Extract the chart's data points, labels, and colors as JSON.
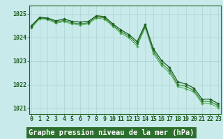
{
  "title": "Graphe pression niveau de la mer (hPa)",
  "background_color": "#c8eaea",
  "grid_color": "#aad4d4",
  "line_color_dark": "#1a5c1a",
  "line_color_mid": "#2d7a2d",
  "line_color_light": "#4aaa4a",
  "x_hours": [
    0,
    1,
    2,
    3,
    4,
    5,
    6,
    7,
    8,
    9,
    10,
    11,
    12,
    13,
    14,
    15,
    16,
    17,
    18,
    19,
    20,
    21,
    22,
    23
  ],
  "series_top": [
    1024.5,
    1024.85,
    1024.82,
    1024.7,
    1024.78,
    1024.68,
    1024.65,
    1024.68,
    1024.92,
    1024.88,
    1024.58,
    1024.32,
    1024.12,
    1023.82,
    1024.55,
    1023.52,
    1023.02,
    1022.72,
    1022.12,
    1022.02,
    1021.85,
    1021.38,
    1021.38,
    1021.18
  ],
  "series_mid": [
    1024.45,
    1024.82,
    1024.8,
    1024.65,
    1024.72,
    1024.62,
    1024.58,
    1024.62,
    1024.87,
    1024.82,
    1024.52,
    1024.25,
    1024.05,
    1023.72,
    1024.48,
    1023.42,
    1022.9,
    1022.6,
    1022.0,
    1021.92,
    1021.75,
    1021.28,
    1021.28,
    1021.1
  ],
  "series_bot": [
    1024.4,
    1024.78,
    1024.75,
    1024.6,
    1024.67,
    1024.57,
    1024.52,
    1024.57,
    1024.82,
    1024.77,
    1024.47,
    1024.18,
    1023.98,
    1023.62,
    1024.42,
    1023.32,
    1022.8,
    1022.5,
    1021.92,
    1021.82,
    1021.68,
    1021.2,
    1021.2,
    1021.02
  ],
  "ylim_min": 1020.75,
  "ylim_max": 1025.35,
  "yticks": [
    1021,
    1022,
    1023,
    1024,
    1025
  ],
  "label_color": "#1a5c1a",
  "title_fontsize": 7.5,
  "tick_fontsize": 6.0,
  "xlabel_bg": "#2d6e2d"
}
